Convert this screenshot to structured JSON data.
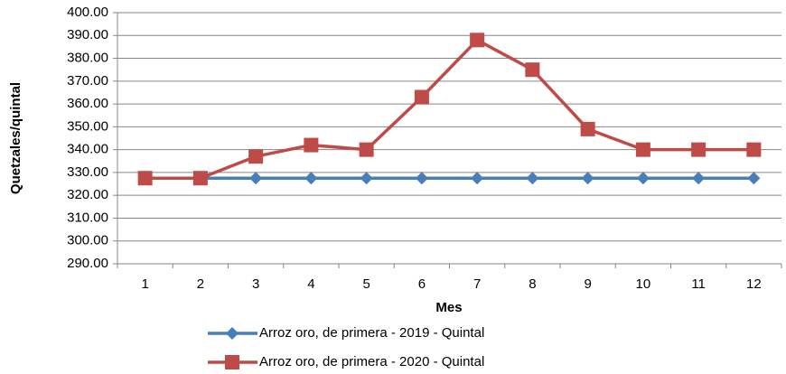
{
  "chart_data": {
    "type": "line",
    "x_label": "Mes",
    "y_label": "Quetzales/quintal",
    "categories": [
      "1",
      "2",
      "3",
      "4",
      "5",
      "6",
      "7",
      "8",
      "9",
      "10",
      "11",
      "12"
    ],
    "series": [
      {
        "name": "Arroz oro, de primera - 2019 - Quintal",
        "color": "#4a7ebb",
        "marker": "diamond",
        "values": [
          327.5,
          327.5,
          327.5,
          327.5,
          327.5,
          327.5,
          327.5,
          327.5,
          327.5,
          327.5,
          327.5,
          327.5
        ]
      },
      {
        "name": "Arroz oro, de primera - 2020 - Quintal",
        "color": "#be4b48",
        "marker": "square",
        "values": [
          327.5,
          327.5,
          337,
          342,
          340,
          363,
          388,
          375,
          349,
          340,
          340,
          340
        ]
      }
    ],
    "ylim": [
      290,
      400
    ],
    "yticks": [
      {
        "value": 290,
        "label": "290.00"
      },
      {
        "value": 300,
        "label": "300.00"
      },
      {
        "value": 310,
        "label": "310.00"
      },
      {
        "value": 320,
        "label": "320.00"
      },
      {
        "value": 330,
        "label": "330.00"
      },
      {
        "value": 340,
        "label": "340.00"
      },
      {
        "value": 350,
        "label": "350.00"
      },
      {
        "value": 360,
        "label": "360.00"
      },
      {
        "value": 370,
        "label": "370.00"
      },
      {
        "value": 380,
        "label": "380.00"
      },
      {
        "value": 390,
        "label": "390.00"
      },
      {
        "value": 400,
        "label": "400.00"
      }
    ],
    "grid": true,
    "legend": "bottom"
  }
}
